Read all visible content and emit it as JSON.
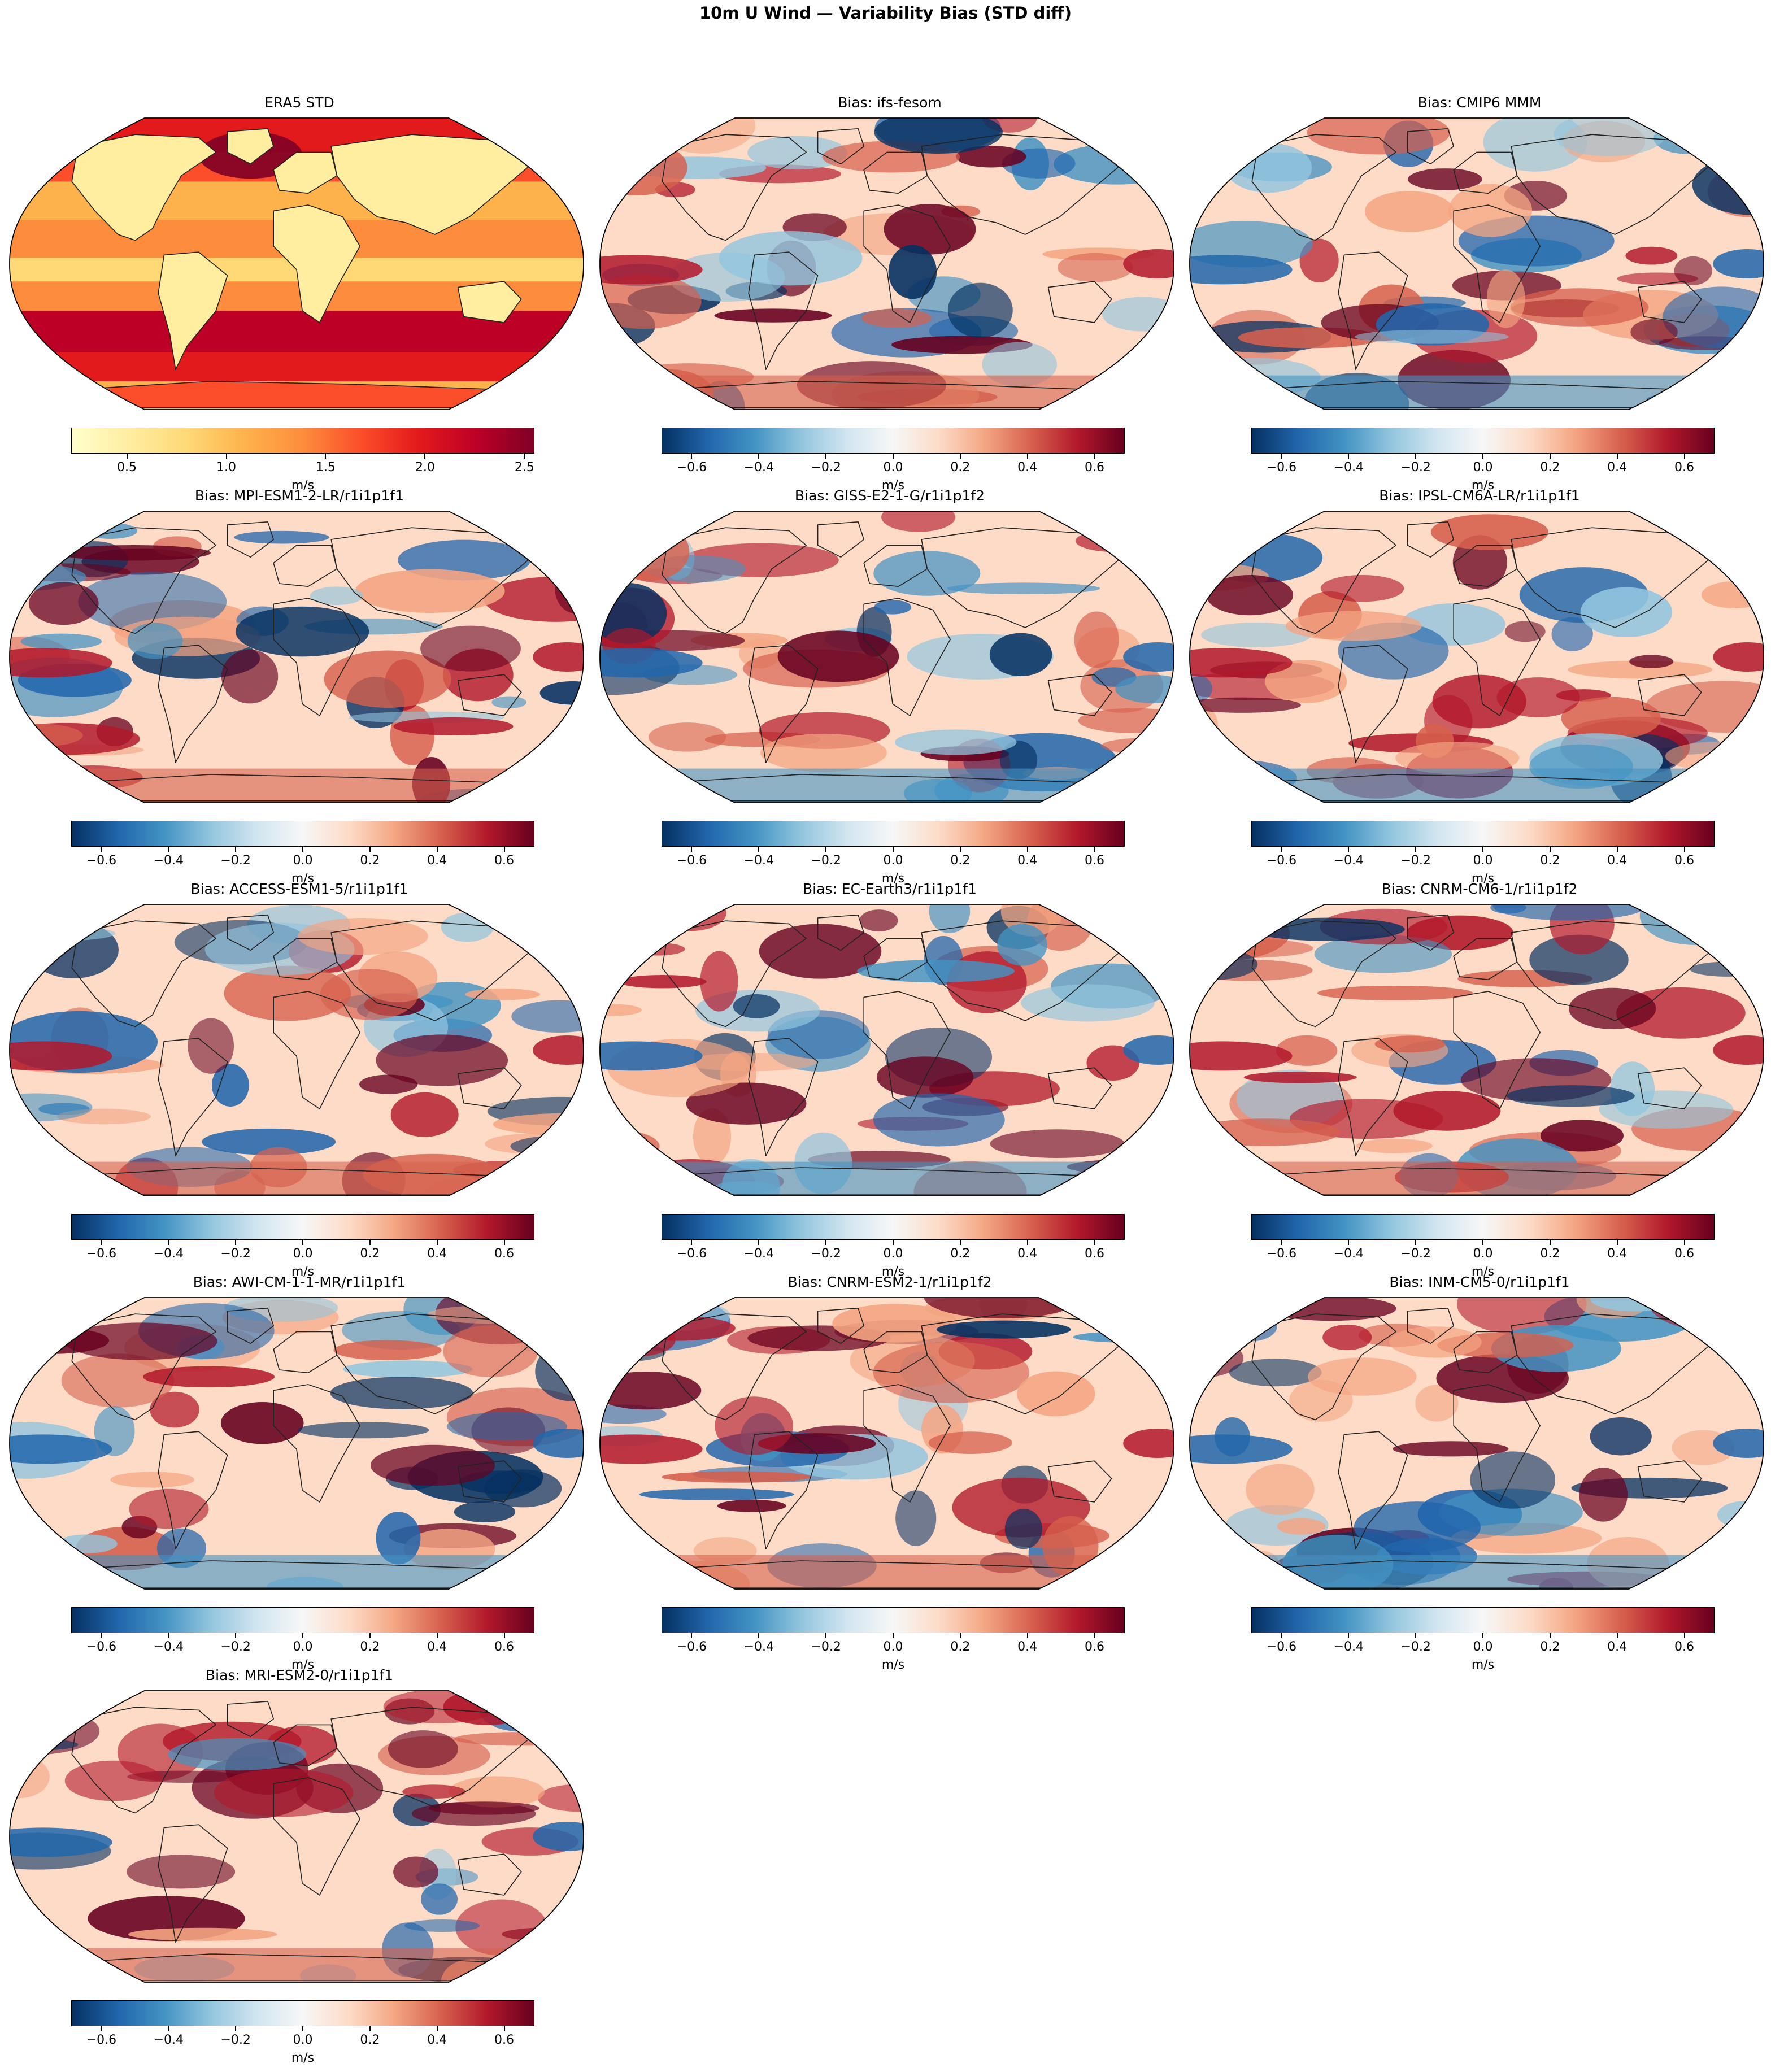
{
  "figure": {
    "title": "10m U Wind — Variability Bias (STD diff)",
    "colors": {
      "seq_colormap": [
        "#ffffcc",
        "#ffeda0",
        "#fed976",
        "#feb24c",
        "#fd8d3c",
        "#fc4e2a",
        "#e31a1c",
        "#bd0026",
        "#800026"
      ],
      "div_colormap": [
        "#053061",
        "#2166ac",
        "#4393c3",
        "#92c5de",
        "#d1e5f0",
        "#f7f7f7",
        "#fddbc7",
        "#f4a582",
        "#d6604d",
        "#b2182b",
        "#67001f"
      ],
      "coastline": "#222222"
    }
  },
  "panels": [
    {
      "title": "ERA5 STD",
      "scale": "seq",
      "units": "m/s",
      "ticks": [
        "0.5",
        "1.0",
        "1.5",
        "2.0",
        "2.5"
      ],
      "range": [
        0.22,
        2.55
      ]
    },
    {
      "title": "Bias: ifs-fesom",
      "scale": "div",
      "units": "m/s",
      "ticks": [
        "−0.6",
        "−0.4",
        "−0.2",
        "0.0",
        "0.2",
        "0.4",
        "0.6"
      ],
      "range": [
        -0.69,
        0.69
      ]
    },
    {
      "title": "Bias: CMIP6 MMM",
      "scale": "div",
      "units": "m/s",
      "ticks": [
        "−0.6",
        "−0.4",
        "−0.2",
        "0.0",
        "0.2",
        "0.4",
        "0.6"
      ],
      "range": [
        -0.69,
        0.69
      ]
    },
    {
      "title": "Bias: MPI-ESM1-2-LR/r1i1p1f1",
      "scale": "div",
      "units": "m/s",
      "ticks": [
        "−0.6",
        "−0.4",
        "−0.2",
        "0.0",
        "0.2",
        "0.4",
        "0.6"
      ],
      "range": [
        -0.69,
        0.69
      ]
    },
    {
      "title": "Bias: GISS-E2-1-G/r1i1p1f2",
      "scale": "div",
      "units": "m/s",
      "ticks": [
        "−0.6",
        "−0.4",
        "−0.2",
        "0.0",
        "0.2",
        "0.4",
        "0.6"
      ],
      "range": [
        -0.69,
        0.69
      ]
    },
    {
      "title": "Bias: IPSL-CM6A-LR/r1i1p1f1",
      "scale": "div",
      "units": "m/s",
      "ticks": [
        "−0.6",
        "−0.4",
        "−0.2",
        "0.0",
        "0.2",
        "0.4",
        "0.6"
      ],
      "range": [
        -0.69,
        0.69
      ]
    },
    {
      "title": "Bias: ACCESS-ESM1-5/r1i1p1f1",
      "scale": "div",
      "units": "m/s",
      "ticks": [
        "−0.6",
        "−0.4",
        "−0.2",
        "0.0",
        "0.2",
        "0.4",
        "0.6"
      ],
      "range": [
        -0.69,
        0.69
      ]
    },
    {
      "title": "Bias: EC-Earth3/r1i1p1f1",
      "scale": "div",
      "units": "m/s",
      "ticks": [
        "−0.6",
        "−0.4",
        "−0.2",
        "0.0",
        "0.2",
        "0.4",
        "0.6"
      ],
      "range": [
        -0.69,
        0.69
      ]
    },
    {
      "title": "Bias: CNRM-CM6-1/r1i1p1f2",
      "scale": "div",
      "units": "m/s",
      "ticks": [
        "−0.6",
        "−0.4",
        "−0.2",
        "0.0",
        "0.2",
        "0.4",
        "0.6"
      ],
      "range": [
        -0.69,
        0.69
      ]
    },
    {
      "title": "Bias: AWI-CM-1-1-MR/r1i1p1f1",
      "scale": "div",
      "units": "m/s",
      "ticks": [
        "−0.6",
        "−0.4",
        "−0.2",
        "0.0",
        "0.2",
        "0.4",
        "0.6"
      ],
      "range": [
        -0.69,
        0.69
      ]
    },
    {
      "title": "Bias: CNRM-ESM2-1/r1i1p1f2",
      "scale": "div",
      "units": "m/s",
      "ticks": [
        "−0.6",
        "−0.4",
        "−0.2",
        "0.0",
        "0.2",
        "0.4",
        "0.6"
      ],
      "range": [
        -0.69,
        0.69
      ]
    },
    {
      "title": "Bias: INM-CM5-0/r1i1p1f1",
      "scale": "div",
      "units": "m/s",
      "ticks": [
        "−0.6",
        "−0.4",
        "−0.2",
        "0.0",
        "0.2",
        "0.4",
        "0.6"
      ],
      "range": [
        -0.69,
        0.69
      ]
    },
    {
      "title": "Bias: MRI-ESM2-0/r1i1p1f1",
      "scale": "div",
      "units": "m/s",
      "ticks": [
        "−0.6",
        "−0.4",
        "−0.2",
        "0.0",
        "0.2",
        "0.4",
        "0.6"
      ],
      "range": [
        -0.69,
        0.69
      ]
    }
  ]
}
